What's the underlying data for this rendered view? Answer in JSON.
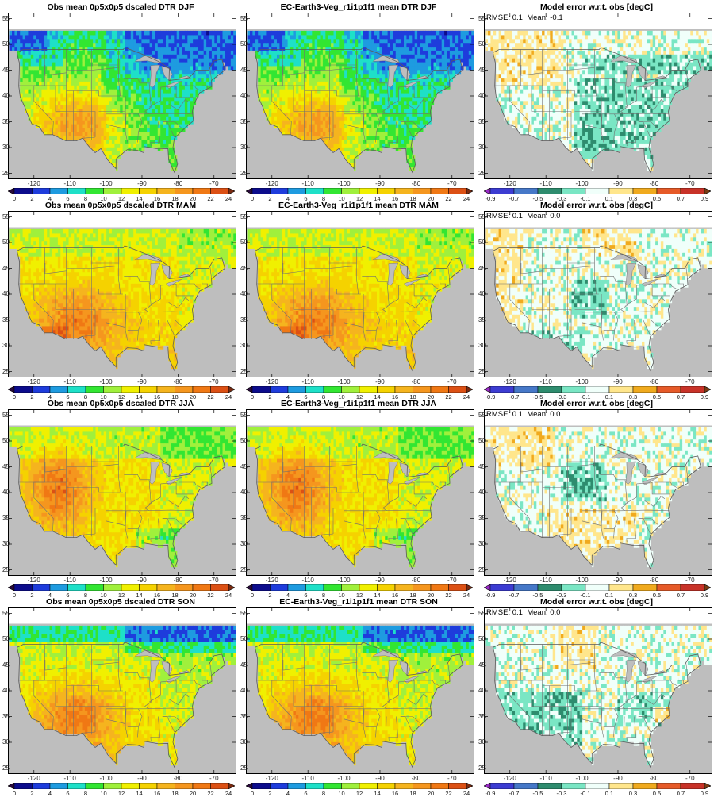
{
  "panels": [
    {
      "title": "Obs mean 0p5x0p5 dscaled DTR DJF",
      "kind": "abs",
      "season": "DJF",
      "pattern": "winter"
    },
    {
      "title": "EC-Earth3-Veg_r1i1p1f1 mean DTR DJF",
      "kind": "abs",
      "season": "DJF",
      "pattern": "winter"
    },
    {
      "title": "Model error w.r.t. obs [degC]",
      "kind": "err",
      "rmse_text": "RMSE: 0.1",
      "mean_text": "Mean: -0.1",
      "pattern": "err_djf"
    },
    {
      "title": "Obs mean 0p5x0p5 dscaled DTR MAM",
      "kind": "abs",
      "season": "MAM",
      "pattern": "spring"
    },
    {
      "title": "EC-Earth3-Veg_r1i1p1f1 mean DTR MAM",
      "kind": "abs",
      "season": "MAM",
      "pattern": "spring"
    },
    {
      "title": "Model error w.r.t. obs [degC]",
      "kind": "err",
      "rmse_text": "RMSE: 0.1",
      "mean_text": "Mean: 0.0",
      "pattern": "err_mam"
    },
    {
      "title": "Obs mean 0p5x0p5 dscaled DTR JJA",
      "kind": "abs",
      "season": "JJA",
      "pattern": "summer"
    },
    {
      "title": "EC-Earth3-Veg_r1i1p1f1 mean DTR JJA",
      "kind": "abs",
      "season": "JJA",
      "pattern": "summer"
    },
    {
      "title": "Model error w.r.t. obs [degC]",
      "kind": "err",
      "rmse_text": "RMSE: 0.1",
      "mean_text": "Mean: 0.0",
      "pattern": "err_jja"
    },
    {
      "title": "Obs mean 0p5x0p5 dscaled DTR SON",
      "kind": "abs",
      "season": "SON",
      "pattern": "autumn"
    },
    {
      "title": "EC-Earth3-Veg_r1i1p1f1 mean DTR SON",
      "kind": "abs",
      "season": "SON",
      "pattern": "autumn"
    },
    {
      "title": "Model error w.r.t. obs [degC]",
      "kind": "err",
      "rmse_text": "RMSE: 0.1",
      "mean_text": "Mean: 0.0",
      "pattern": "err_son"
    }
  ],
  "lat_ticks": [
    "25",
    "30",
    "35",
    "40",
    "45",
    "50",
    "55"
  ],
  "lon_ticks": [
    "-120",
    "-110",
    "-100",
    "-90",
    "-80",
    "-70"
  ],
  "abs_colorbar": {
    "labels": [
      "0",
      "2",
      "4",
      "6",
      "8",
      "10",
      "12",
      "14",
      "16",
      "18",
      "20",
      "22",
      "24"
    ],
    "colors": [
      "#2a0a3c",
      "#0c0c8c",
      "#1e3cdc",
      "#1e9be0",
      "#1ee0c8",
      "#32e632",
      "#a0f03c",
      "#f0f000",
      "#f5d200",
      "#f5b41e",
      "#f5961e",
      "#f07814",
      "#dc5014",
      "#7a2a10"
    ]
  },
  "err_colorbar": {
    "labels": [
      "-0.9",
      "-0.7",
      "-0.5",
      "-0.3",
      "-0.1",
      "0.1",
      "0.3",
      "0.5",
      "0.7",
      "0.9"
    ],
    "colors": [
      "#9a2ac8",
      "#3c3cd2",
      "#4678c8",
      "#2e8c6e",
      "#7ae6c4",
      "#f0fffa",
      "#ffe68c",
      "#f0aa1e",
      "#e65a28",
      "#c83228",
      "#7a3c14"
    ]
  },
  "mask_color": "#bebebe"
}
